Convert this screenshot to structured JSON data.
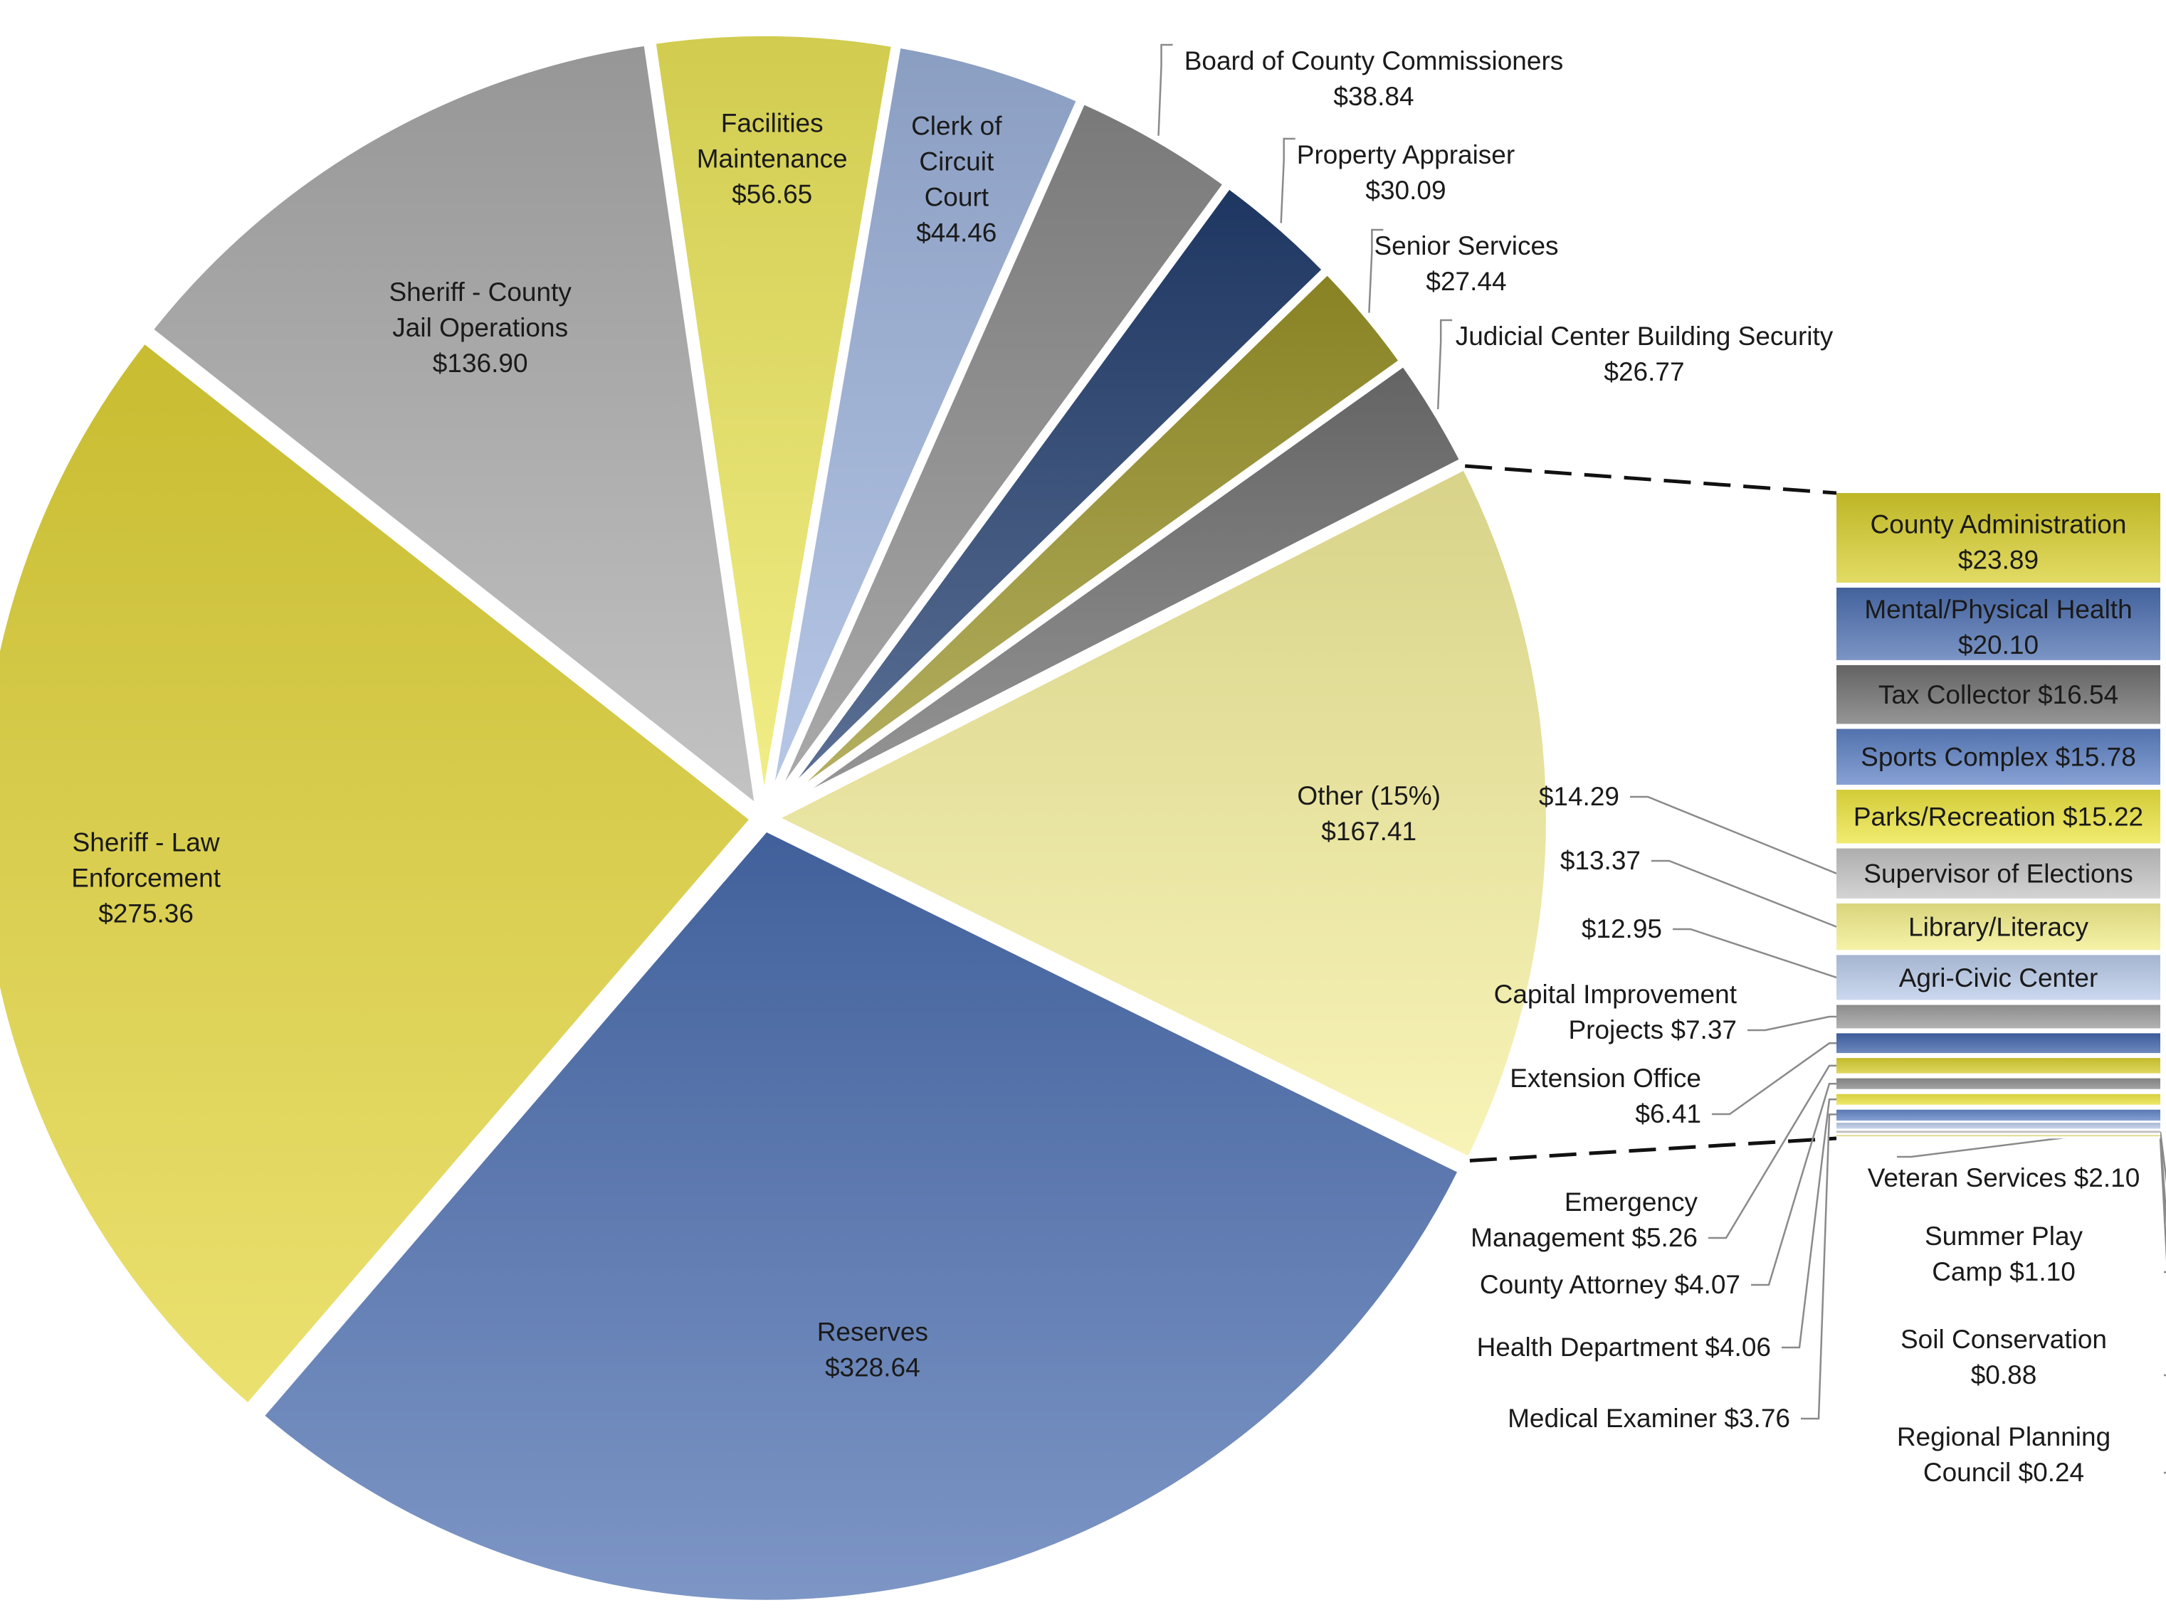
{
  "chart_data": {
    "type": "pie",
    "title": "",
    "pie_slices": [
      {
        "key": "reserves",
        "label_lines": [
          "Reserves",
          "$328.64"
        ],
        "value": 328.64,
        "color": "#4a6db0"
      },
      {
        "key": "sheriff-law",
        "label_lines": [
          "Sheriff - Law",
          "Enforcement",
          "$275.36"
        ],
        "value": 275.36,
        "color": "#e3d638"
      },
      {
        "key": "sheriff-jail",
        "label_lines": [
          "Sheriff - County",
          "Jail Operations",
          "$136.90"
        ],
        "value": 136.9,
        "color": "#ababab"
      },
      {
        "key": "facilities",
        "label_lines": [
          "Facilities",
          "Maintenance",
          "$56.65"
        ],
        "value": 56.65,
        "color": "#ede85a"
      },
      {
        "key": "clerk",
        "label_lines": [
          "Clerk of",
          "Circuit",
          "Court",
          "$44.46"
        ],
        "value": 44.46,
        "color": "#9db3dd"
      },
      {
        "key": "bocc",
        "label_lines": [
          "Board of County Commissioners",
          "$38.84"
        ],
        "value": 38.84,
        "color": "#8a8a8a"
      },
      {
        "key": "property",
        "label_lines": [
          "Property Appraiser",
          "$30.09"
        ],
        "value": 30.09,
        "color": "#213d6e"
      },
      {
        "key": "senior",
        "label_lines": [
          "Senior Services",
          "$27.44"
        ],
        "value": 27.44,
        "color": "#9a9428"
      },
      {
        "key": "judicial",
        "label_lines": [
          "Judicial Center Building Security",
          "$26.77"
        ],
        "value": 26.77,
        "color": "#707070"
      },
      {
        "key": "other",
        "label_lines": [
          "Other (15%)",
          "$167.41"
        ],
        "value": 167.41,
        "color": "#f5f09c"
      }
    ],
    "other_breakdown": [
      {
        "key": "county-admin",
        "label": "County Administration",
        "value_text": "$23.89",
        "value": 23.89,
        "color": "#d8cf2a",
        "label_style": "two-line"
      },
      {
        "key": "mental-health",
        "label": "Mental/Physical Health",
        "value_text": "$20.10",
        "value": 20.1,
        "color": "#4a6db0",
        "label_style": "two-line"
      },
      {
        "key": "tax-collector",
        "label": "Tax Collector",
        "value_text": "$16.54",
        "value": 16.54,
        "color": "#6e6e6e",
        "label_style": "inline"
      },
      {
        "key": "sports-complex",
        "label": "Sports Complex",
        "value_text": "$15.78",
        "value": 15.78,
        "color": "#5b7fc4",
        "label_style": "inline"
      },
      {
        "key": "parks-rec",
        "label": "Parks/Recreation",
        "value_text": "$15.22",
        "value": 15.22,
        "color": "#ede63c",
        "label_style": "inline"
      },
      {
        "key": "elections",
        "label": "Supervisor of Elections",
        "value_text": "$14.29",
        "value": 14.29,
        "color": "#c4c4c4",
        "label_style": "outside-left"
      },
      {
        "key": "library",
        "label": "Library/Literacy",
        "value_text": "$13.37",
        "value": 13.37,
        "color": "#f4f08a",
        "label_style": "outside-left"
      },
      {
        "key": "agri-civic",
        "label": "Agri-Civic Center",
        "value_text": "$12.95",
        "value": 12.95,
        "color": "#b9cbea",
        "label_style": "outside-left"
      },
      {
        "key": "capital",
        "label_lines": [
          "Capital Improvement",
          "Projects  $7.37"
        ],
        "value": 7.37,
        "color": "#9a9a9a",
        "label_style": "callout"
      },
      {
        "key": "extension",
        "label_lines": [
          "Extension Office",
          "$6.41"
        ],
        "value": 6.41,
        "color": "#3d62aa",
        "label_style": "callout"
      },
      {
        "key": "emergency",
        "label_lines": [
          "Emergency",
          "Management  $5.26"
        ],
        "value": 5.26,
        "color": "#d8cf2a",
        "label_style": "callout"
      },
      {
        "key": "county-attorney",
        "label_lines": [
          "County Attorney  $4.07"
        ],
        "value": 4.07,
        "color": "#8a8a8a",
        "label_style": "callout"
      },
      {
        "key": "health-dept",
        "label_lines": [
          "Health Department  $4.06"
        ],
        "value": 4.06,
        "color": "#ede63c",
        "label_style": "callout"
      },
      {
        "key": "medical-examiner",
        "label_lines": [
          "Medical Examiner  $3.76"
        ],
        "value": 3.76,
        "color": "#5b7fc4",
        "label_style": "callout"
      },
      {
        "key": "veteran",
        "label_lines": [
          "Veteran Services  $2.10"
        ],
        "value": 2.1,
        "color": "#b9cbea",
        "label_style": "callout"
      },
      {
        "key": "summer-camp",
        "label_lines": [
          "Summer Play",
          "Camp  $1.10"
        ],
        "value": 1.1,
        "color": "#c4c4c4",
        "label_style": "callout"
      },
      {
        "key": "soil",
        "label_lines": [
          "Soil Conservation",
          "$0.88"
        ],
        "value": 0.88,
        "color": "#e8e380",
        "label_style": "callout"
      },
      {
        "key": "regional-planning",
        "label_lines": [
          "Regional Planning",
          "Council  $0.24"
        ],
        "value": 0.24,
        "color": "#9db3dd",
        "label_style": "callout"
      }
    ]
  }
}
